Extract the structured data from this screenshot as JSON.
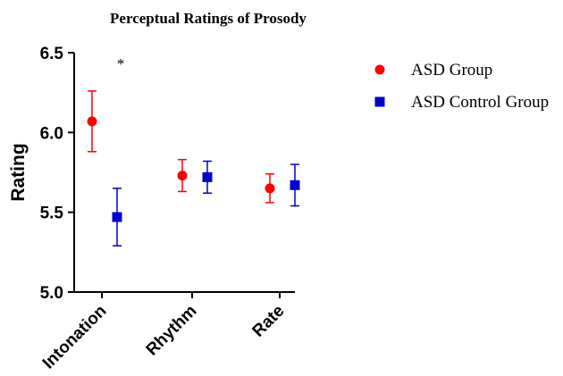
{
  "chart_data": {
    "type": "scatter",
    "title": "Perceptual Ratings of Prosody",
    "xlabel": "",
    "ylabel": "Rating",
    "categories": [
      "Intonation",
      "Rhythm",
      "Rate"
    ],
    "ylim": [
      5.0,
      6.5
    ],
    "yticks": [
      "5.0",
      "5.5",
      "6.0",
      "6.5"
    ],
    "grid": false,
    "legend_position": "right",
    "series": [
      {
        "name": "ASD Group",
        "marker": "circle",
        "color": "#ff0000",
        "values": [
          6.07,
          5.73,
          5.65
        ],
        "error": [
          0.19,
          0.1,
          0.09
        ]
      },
      {
        "name": "ASD Control Group",
        "marker": "square",
        "color": "#0000cc",
        "values": [
          5.47,
          5.72,
          5.67
        ],
        "error": [
          0.18,
          0.1,
          0.13
        ]
      }
    ],
    "annotations": [
      {
        "text": "*",
        "category": "Intonation"
      }
    ]
  }
}
